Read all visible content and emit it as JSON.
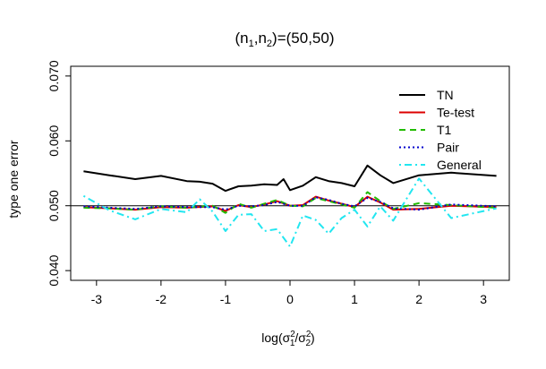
{
  "chart_data": {
    "type": "line",
    "title": "(n1,n2)=(50,50)",
    "title_parts": {
      "pre": "(n",
      "sub1": "1",
      "mid": ",n",
      "sub2": "2",
      "post": ")=(50,50)"
    },
    "xlabel": "log(σ1²/σ2²)",
    "xlabel_parts": {
      "pre": "log(σ",
      "sup1": "2",
      "sub1": "1",
      "slash": "/σ",
      "sup2": "2",
      "sub2": "2",
      "post": ")"
    },
    "ylabel": "type one error",
    "xlim": [
      -3.4,
      3.4
    ],
    "ylim": [
      0.0385,
      0.0715
    ],
    "xticks": [
      -3,
      -2,
      -1,
      0,
      1,
      2,
      3
    ],
    "xtick_labels": [
      "-3",
      "-2",
      "-1",
      "0",
      "1",
      "2",
      "3"
    ],
    "yticks": [
      0.04,
      0.05,
      0.06,
      0.07
    ],
    "ytick_labels": [
      "0.040",
      "0.050",
      "0.060",
      "0.070"
    ],
    "reference_line": 0.05,
    "grid": false,
    "legend_position": "top-right",
    "series": [
      {
        "name": "TN",
        "color": "#000000",
        "dash": "solid",
        "x": [
          -3.2,
          -2.8,
          -2.4,
          -2.0,
          -1.6,
          -1.4,
          -1.2,
          -1.0,
          -0.8,
          -0.6,
          -0.4,
          -0.2,
          -0.1,
          0.0,
          0.2,
          0.4,
          0.6,
          0.8,
          1.0,
          1.2,
          1.4,
          1.6,
          2.0,
          2.5,
          3.2
        ],
        "y": [
          0.0553,
          0.0547,
          0.0541,
          0.0546,
          0.0538,
          0.0537,
          0.0534,
          0.0523,
          0.053,
          0.0531,
          0.0533,
          0.0532,
          0.0541,
          0.0524,
          0.0531,
          0.0544,
          0.0538,
          0.0535,
          0.053,
          0.0562,
          0.0547,
          0.0535,
          0.0547,
          0.0551,
          0.0546
        ]
      },
      {
        "name": "Te-test",
        "color": "#dd0000",
        "dash": "solid",
        "x": [
          -3.2,
          -2.8,
          -2.4,
          -2.0,
          -1.6,
          -1.2,
          -1.0,
          -0.8,
          -0.6,
          -0.4,
          -0.2,
          0.0,
          0.2,
          0.4,
          0.6,
          0.8,
          1.0,
          1.2,
          1.4,
          1.6,
          2.0,
          2.5,
          3.2
        ],
        "y": [
          0.0498,
          0.0496,
          0.0494,
          0.0498,
          0.0497,
          0.0499,
          0.0492,
          0.0501,
          0.0498,
          0.0502,
          0.0507,
          0.05,
          0.0501,
          0.0514,
          0.0508,
          0.0503,
          0.0498,
          0.0514,
          0.0505,
          0.0494,
          0.0495,
          0.05,
          0.0498
        ]
      },
      {
        "name": "T1",
        "color": "#22bb00",
        "dash": "dashed",
        "x": [
          -3.2,
          -2.8,
          -2.4,
          -2.0,
          -1.6,
          -1.2,
          -1.0,
          -0.8,
          -0.6,
          -0.4,
          -0.2,
          0.0,
          0.2,
          0.4,
          0.6,
          0.8,
          1.0,
          1.2,
          1.4,
          1.6,
          2.0,
          2.5,
          3.2
        ],
        "y": [
          0.0497,
          0.0496,
          0.0494,
          0.0499,
          0.0497,
          0.05,
          0.0489,
          0.0503,
          0.0497,
          0.0503,
          0.0509,
          0.05,
          0.0499,
          0.0512,
          0.0507,
          0.0502,
          0.0497,
          0.0521,
          0.0507,
          0.0495,
          0.0504,
          0.0501,
          0.0497
        ]
      },
      {
        "name": "Pair",
        "color": "#0000cc",
        "dash": "dotted",
        "x": [
          -3.2,
          -2.8,
          -2.4,
          -2.0,
          -1.6,
          -1.2,
          -1.0,
          -0.8,
          -0.6,
          -0.4,
          -0.2,
          0.0,
          0.2,
          0.4,
          0.6,
          0.8,
          1.0,
          1.2,
          1.4,
          1.6,
          2.0,
          2.5,
          3.2
        ],
        "y": [
          0.0499,
          0.0497,
          0.0495,
          0.0499,
          0.0498,
          0.0498,
          0.0494,
          0.05,
          0.0499,
          0.0501,
          0.0506,
          0.05,
          0.05,
          0.0513,
          0.0509,
          0.0503,
          0.0499,
          0.0512,
          0.0506,
          0.0496,
          0.0494,
          0.0502,
          0.0499
        ]
      },
      {
        "name": "General",
        "color": "#22e6f0",
        "dash": "dashdot",
        "x": [
          -3.2,
          -2.8,
          -2.4,
          -2.0,
          -1.6,
          -1.4,
          -1.2,
          -1.0,
          -0.8,
          -0.6,
          -0.4,
          -0.2,
          0.0,
          0.2,
          0.4,
          0.6,
          0.8,
          1.0,
          1.2,
          1.4,
          1.6,
          2.0,
          2.5,
          3.2
        ],
        "y": [
          0.0515,
          0.0493,
          0.0479,
          0.0495,
          0.049,
          0.051,
          0.0491,
          0.0461,
          0.0486,
          0.0487,
          0.0461,
          0.0464,
          0.0437,
          0.0485,
          0.0478,
          0.0457,
          0.0481,
          0.0494,
          0.0468,
          0.0499,
          0.0477,
          0.0542,
          0.0481,
          0.0496
        ]
      }
    ]
  }
}
